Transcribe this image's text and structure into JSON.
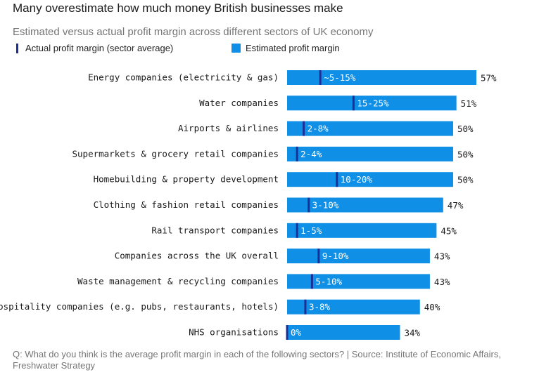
{
  "title": "Many overestimate how much money British businesses make",
  "subtitle": "Estimated versus actual profit margin across different sectors of UK economy",
  "legend": {
    "actual_label": "Actual profit margin (sector average)",
    "estimated_label": "Estimated profit margin"
  },
  "colors": {
    "estimated": "#0f8fe6",
    "actual": "#1c2f96"
  },
  "footer": {
    "text": "Q: What do you think is the average profit margin in each of the following sectors?  |  Source: Institute of Economic Affairs, Freshwater Strategy"
  },
  "chart_data": {
    "type": "bar",
    "orientation": "horizontal",
    "categories": [
      "Energy companies (electricity & gas)",
      "Water companies",
      "Airports & airlines",
      "Supermarkets & grocery retail companies",
      "Homebuilding & property development",
      "Clothing & fashion retail companies",
      "Rail transport companies",
      "Companies across the UK overall",
      "Waste management & recycling companies",
      "Hospitality companies (e.g. pubs, restaurants, hotels)",
      "NHS organisations"
    ],
    "series": [
      {
        "name": "Estimated profit margin",
        "values": [
          57,
          51,
          50,
          50,
          50,
          47,
          45,
          43,
          43,
          40,
          34
        ],
        "labels": [
          "57%",
          "51%",
          "50%",
          "50%",
          "50%",
          "47%",
          "45%",
          "43%",
          "43%",
          "40%",
          "34%"
        ]
      },
      {
        "name": "Actual profit margin (sector average)",
        "ranges": [
          [
            5,
            15
          ],
          [
            15,
            25
          ],
          [
            2,
            8
          ],
          [
            2,
            4
          ],
          [
            10,
            20
          ],
          [
            3,
            10
          ],
          [
            1,
            5
          ],
          [
            9,
            10
          ],
          [
            5,
            10
          ],
          [
            3,
            8
          ],
          [
            0,
            0
          ]
        ],
        "labels": [
          "~5-15%",
          "15-25%",
          "2-8%",
          "2-4%",
          "10-20%",
          "3-10%",
          "1-5%",
          "9-10%",
          "5-10%",
          "3-8%",
          "0%"
        ]
      }
    ],
    "xlim": [
      0,
      57
    ]
  }
}
